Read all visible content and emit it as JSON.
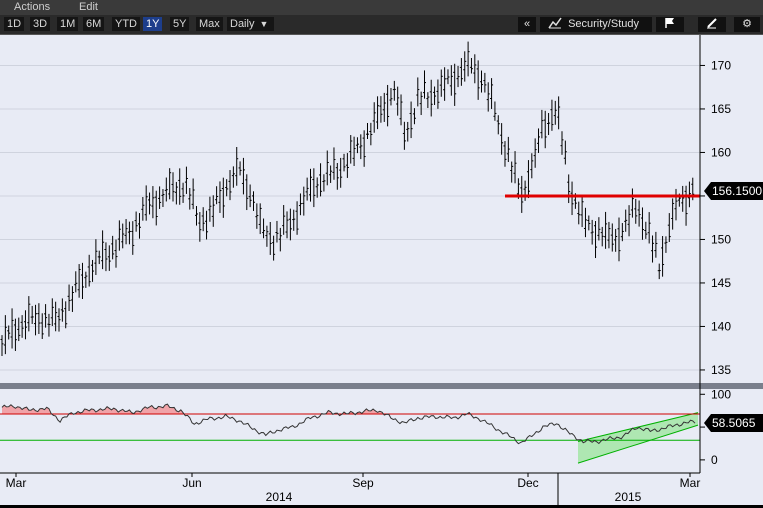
{
  "menu": {
    "actions_label": "Actions",
    "edit_label": "Edit"
  },
  "toolbar": {
    "ranges": [
      {
        "label": "1D",
        "active": false
      },
      {
        "label": "3D",
        "active": false
      },
      {
        "label": "1M",
        "active": false
      },
      {
        "label": "6M",
        "active": false
      },
      {
        "label": "YTD",
        "active": false
      },
      {
        "label": "1Y",
        "active": true
      },
      {
        "label": "5Y",
        "active": false
      },
      {
        "label": "Max",
        "active": false
      }
    ],
    "frequency_label": "Daily",
    "collapse_label": "«",
    "security_study_label": "Security/Study"
  },
  "colors": {
    "plot_bg": "#e8ebf5",
    "accent_active": "#1d3e8c",
    "support_line": "#e00000",
    "rsi_upper": "#d00000",
    "rsi_lower": "#00b000",
    "channel_fill": "#9be59b"
  },
  "chart_data": [
    {
      "type": "candlestick",
      "frequency": "Daily",
      "range": "1Y",
      "y_ticks": [
        135,
        140,
        145,
        150,
        155,
        160,
        165,
        170
      ],
      "ylim": [
        133.5,
        173.5
      ],
      "x_ticks": [
        "Mar",
        "Jun",
        "Sep",
        "Dec",
        "Mar"
      ],
      "year_labels": [
        "2014",
        "2015"
      ],
      "last_price_label": "156.1500",
      "last_price": 156.15,
      "support_line_value": 155,
      "price_anchors": [
        {
          "d": 0,
          "v": 138
        },
        {
          "d": 5,
          "v": 139.5
        },
        {
          "d": 10,
          "v": 140.5
        },
        {
          "d": 18,
          "v": 141
        },
        {
          "d": 24,
          "v": 140.5
        },
        {
          "d": 30,
          "v": 143
        },
        {
          "d": 40,
          "v": 147
        },
        {
          "d": 50,
          "v": 149
        },
        {
          "d": 58,
          "v": 151
        },
        {
          "d": 66,
          "v": 154
        },
        {
          "d": 74,
          "v": 155.5
        },
        {
          "d": 82,
          "v": 156.5
        },
        {
          "d": 88,
          "v": 152
        },
        {
          "d": 94,
          "v": 153
        },
        {
          "d": 100,
          "v": 156
        },
        {
          "d": 106,
          "v": 158
        },
        {
          "d": 112,
          "v": 155
        },
        {
          "d": 116,
          "v": 151
        },
        {
          "d": 122,
          "v": 150
        },
        {
          "d": 128,
          "v": 151.5
        },
        {
          "d": 134,
          "v": 154
        },
        {
          "d": 140,
          "v": 156.5
        },
        {
          "d": 150,
          "v": 158
        },
        {
          "d": 158,
          "v": 160
        },
        {
          "d": 166,
          "v": 163
        },
        {
          "d": 172,
          "v": 166
        },
        {
          "d": 176,
          "v": 167
        },
        {
          "d": 180,
          "v": 162
        },
        {
          "d": 186,
          "v": 166
        },
        {
          "d": 194,
          "v": 167
        },
        {
          "d": 200,
          "v": 168
        },
        {
          "d": 208,
          "v": 170
        },
        {
          "d": 214,
          "v": 169
        },
        {
          "d": 220,
          "v": 165
        },
        {
          "d": 226,
          "v": 160
        },
        {
          "d": 232,
          "v": 155
        },
        {
          "d": 238,
          "v": 159
        },
        {
          "d": 242,
          "v": 163
        },
        {
          "d": 248,
          "v": 165
        },
        {
          "d": 254,
          "v": 156
        },
        {
          "d": 260,
          "v": 152
        },
        {
          "d": 266,
          "v": 151
        },
        {
          "d": 272,
          "v": 150
        },
        {
          "d": 278,
          "v": 151
        },
        {
          "d": 284,
          "v": 154
        },
        {
          "d": 290,
          "v": 150
        },
        {
          "d": 294,
          "v": 147
        },
        {
          "d": 298,
          "v": 151
        },
        {
          "d": 302,
          "v": 154
        },
        {
          "d": 306,
          "v": 155
        },
        {
          "d": 310,
          "v": 156
        }
      ]
    },
    {
      "type": "line",
      "indicator": "RSI",
      "y_ticks": [
        0,
        50,
        100
      ],
      "upper_band": 70,
      "lower_band": 30,
      "last_value_label": "58.5065",
      "last_value": 58.5,
      "rsi_anchors": [
        {
          "d": 0,
          "v": 80
        },
        {
          "d": 6,
          "v": 82
        },
        {
          "d": 12,
          "v": 76
        },
        {
          "d": 20,
          "v": 78
        },
        {
          "d": 26,
          "v": 60
        },
        {
          "d": 32,
          "v": 72
        },
        {
          "d": 40,
          "v": 76
        },
        {
          "d": 50,
          "v": 78
        },
        {
          "d": 58,
          "v": 72
        },
        {
          "d": 66,
          "v": 80
        },
        {
          "d": 74,
          "v": 82
        },
        {
          "d": 80,
          "v": 75
        },
        {
          "d": 86,
          "v": 55
        },
        {
          "d": 92,
          "v": 62
        },
        {
          "d": 100,
          "v": 66
        },
        {
          "d": 106,
          "v": 60
        },
        {
          "d": 112,
          "v": 48
        },
        {
          "d": 118,
          "v": 38
        },
        {
          "d": 124,
          "v": 46
        },
        {
          "d": 130,
          "v": 50
        },
        {
          "d": 138,
          "v": 64
        },
        {
          "d": 146,
          "v": 72
        },
        {
          "d": 154,
          "v": 70
        },
        {
          "d": 162,
          "v": 74
        },
        {
          "d": 168,
          "v": 76
        },
        {
          "d": 174,
          "v": 64
        },
        {
          "d": 180,
          "v": 56
        },
        {
          "d": 186,
          "v": 64
        },
        {
          "d": 194,
          "v": 66
        },
        {
          "d": 202,
          "v": 64
        },
        {
          "d": 208,
          "v": 70
        },
        {
          "d": 214,
          "v": 62
        },
        {
          "d": 220,
          "v": 50
        },
        {
          "d": 226,
          "v": 38
        },
        {
          "d": 232,
          "v": 26
        },
        {
          "d": 236,
          "v": 34
        },
        {
          "d": 242,
          "v": 50
        },
        {
          "d": 248,
          "v": 56
        },
        {
          "d": 254,
          "v": 40
        },
        {
          "d": 260,
          "v": 28
        },
        {
          "d": 266,
          "v": 28
        },
        {
          "d": 272,
          "v": 32
        },
        {
          "d": 278,
          "v": 36
        },
        {
          "d": 284,
          "v": 50
        },
        {
          "d": 290,
          "v": 44
        },
        {
          "d": 296,
          "v": 48
        },
        {
          "d": 302,
          "v": 54
        },
        {
          "d": 310,
          "v": 58.5
        }
      ]
    }
  ]
}
